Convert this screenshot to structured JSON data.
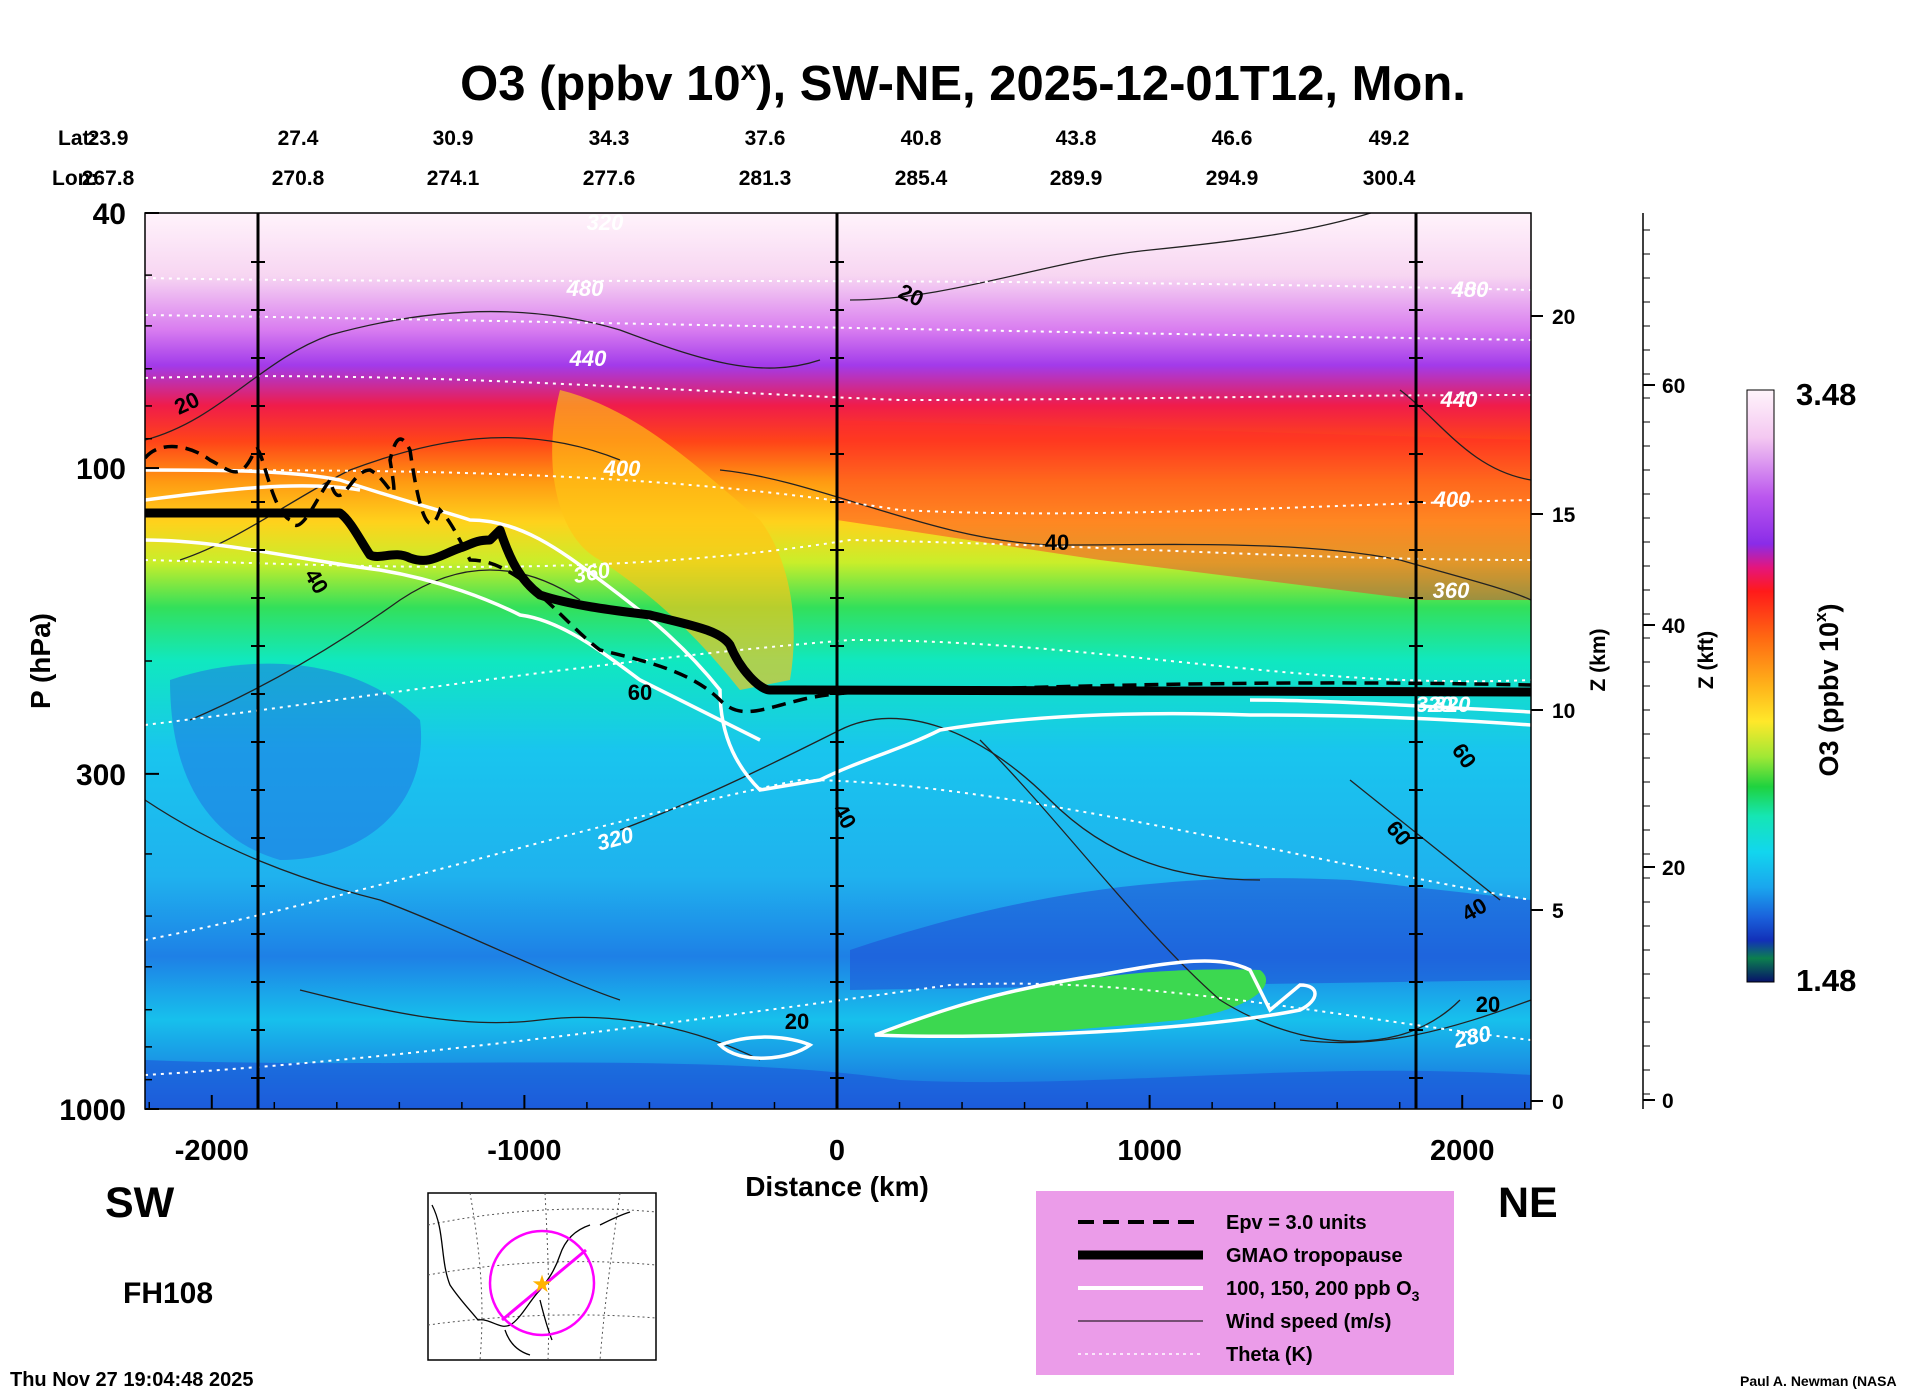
{
  "title": {
    "main_prefix": "O3 (ppbv 10",
    "superscript": "x",
    "main_suffix": "), SW-NE, 2025-12-01T12, Mon."
  },
  "coords": {
    "lat_label": "Lat:",
    "lon_label": "Lon:",
    "lat": [
      "23.9",
      "27.4",
      "30.9",
      "34.3",
      "37.6",
      "40.8",
      "43.8",
      "46.6",
      "49.2"
    ],
    "lon": [
      "267.8",
      "270.8",
      "274.1",
      "277.6",
      "281.3",
      "285.4",
      "289.9",
      "294.9",
      "300.4"
    ]
  },
  "chart_data": {
    "type": "heatmap",
    "title": "O3 (ppbv 10^x), SW-NE, 2025-12-01T12, Mon.",
    "xlabel": "Distance (km)",
    "ylabel": "P (hPa)",
    "xlim": [
      -2220,
      2220
    ],
    "ylim": [
      1000,
      40
    ],
    "x_ticks": [
      -2000,
      -1000,
      0,
      1000,
      2000
    ],
    "x_tick_labels": [
      "-2000",
      "-1000",
      "0",
      "1000",
      "2000"
    ],
    "p_ticks": [
      1000,
      300,
      100,
      40
    ],
    "p_tick_labels": [
      "1000",
      "300",
      "100",
      "40"
    ],
    "z_km_label": "Z (km)",
    "z_km_ticks": [
      "0",
      "5",
      "10",
      "15",
      "20"
    ],
    "z_kft_label": "Z (kft)",
    "z_kft_ticks": [
      "0",
      "20",
      "40",
      "60"
    ],
    "colorbar": {
      "label": "O3 (ppbv 10",
      "label_sup": "x",
      "min": "1.48",
      "max": "3.48"
    },
    "wind_labels": [
      "20",
      "20",
      "40",
      "40",
      "60",
      "40",
      "60",
      "60",
      "40",
      "20",
      "20"
    ],
    "theta_labels": [
      "320",
      "480",
      "440",
      "400",
      "360",
      "320",
      "320",
      "440",
      "400",
      "360",
      "320",
      "280",
      "480"
    ],
    "tropopause_p_hPa": {
      "x_km": [
        -2220,
        -1550,
        -1450,
        -1300,
        -1120,
        -1000,
        -800,
        -650,
        -460,
        -330,
        -200,
        0,
        500,
        1000,
        1500,
        1900,
        2220
      ],
      "p": [
        115,
        115,
        135,
        140,
        132,
        150,
        165,
        172,
        188,
        218,
        222,
        222,
        222,
        222,
        220,
        220,
        222
      ]
    },
    "series": [
      {
        "name": "Epv = 3.0 units",
        "style": "dashed black"
      },
      {
        "name": "GMAO tropopause",
        "style": "thick black"
      },
      {
        "name": "100, 150, 200 ppb O3",
        "style": "white"
      },
      {
        "name": "Wind speed (m/s)",
        "style": "thin black"
      },
      {
        "name": "Theta (K)",
        "style": "dotted white"
      }
    ]
  },
  "labels": {
    "sw": "SW",
    "ne": "NE",
    "forecast_hour": "FH108"
  },
  "legend": {
    "items": [
      "Epv = 3.0 units",
      "GMAO tropopause",
      "100, 150, 200 ppb O",
      "Wind speed (m/s)",
      "Theta (K)"
    ],
    "o3_sub": "3"
  },
  "footer": {
    "timestamp": "Thu Nov 27 19:04:48 2025",
    "credit": "Paul A. Newman (NASA"
  },
  "colors": {
    "ozone_high": "#ff1a1a",
    "ozone_low": "#0b2aa8",
    "legend_bg": "#eb9ce9",
    "map_track": "#ff00ff"
  }
}
